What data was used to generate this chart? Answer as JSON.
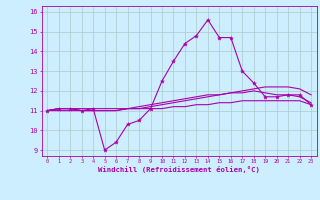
{
  "xlabel": "Windchill (Refroidissement éolien,°C)",
  "bg_color": "#cceeff",
  "line_color": "#aa00aa",
  "grid_color": "#aacccc",
  "xlim": [
    -0.5,
    23.5
  ],
  "ylim": [
    8.7,
    16.3
  ],
  "yticks": [
    9,
    10,
    11,
    12,
    13,
    14,
    15,
    16
  ],
  "xticks": [
    0,
    1,
    2,
    3,
    4,
    5,
    6,
    7,
    8,
    9,
    10,
    11,
    12,
    13,
    14,
    15,
    16,
    17,
    18,
    19,
    20,
    21,
    22,
    23
  ],
  "series": [
    [
      11.0,
      11.1,
      11.1,
      11.0,
      11.1,
      9.0,
      9.4,
      10.3,
      10.5,
      11.1,
      12.5,
      13.5,
      14.4,
      14.8,
      15.6,
      14.7,
      14.7,
      13.0,
      12.4,
      11.7,
      11.7,
      11.8,
      11.8,
      11.3
    ],
    [
      11.0,
      11.1,
      11.1,
      11.0,
      11.0,
      11.0,
      11.0,
      11.1,
      11.1,
      11.2,
      11.3,
      11.4,
      11.5,
      11.6,
      11.7,
      11.8,
      11.9,
      12.0,
      12.1,
      12.2,
      12.2,
      12.2,
      12.1,
      11.8
    ],
    [
      11.0,
      11.1,
      11.1,
      11.1,
      11.1,
      11.1,
      11.1,
      11.1,
      11.2,
      11.3,
      11.4,
      11.5,
      11.6,
      11.7,
      11.8,
      11.8,
      11.9,
      11.9,
      12.0,
      11.9,
      11.8,
      11.8,
      11.7,
      11.4
    ],
    [
      11.0,
      11.0,
      11.0,
      11.0,
      11.0,
      11.0,
      11.0,
      11.1,
      11.1,
      11.1,
      11.1,
      11.2,
      11.2,
      11.3,
      11.3,
      11.4,
      11.4,
      11.5,
      11.5,
      11.5,
      11.5,
      11.5,
      11.5,
      11.3
    ]
  ],
  "xtick_fontsize": 3.8,
  "ytick_fontsize": 5.0,
  "xlabel_fontsize": 5.2,
  "linewidth": 0.8,
  "marker": "*",
  "marker_size": 3.0
}
